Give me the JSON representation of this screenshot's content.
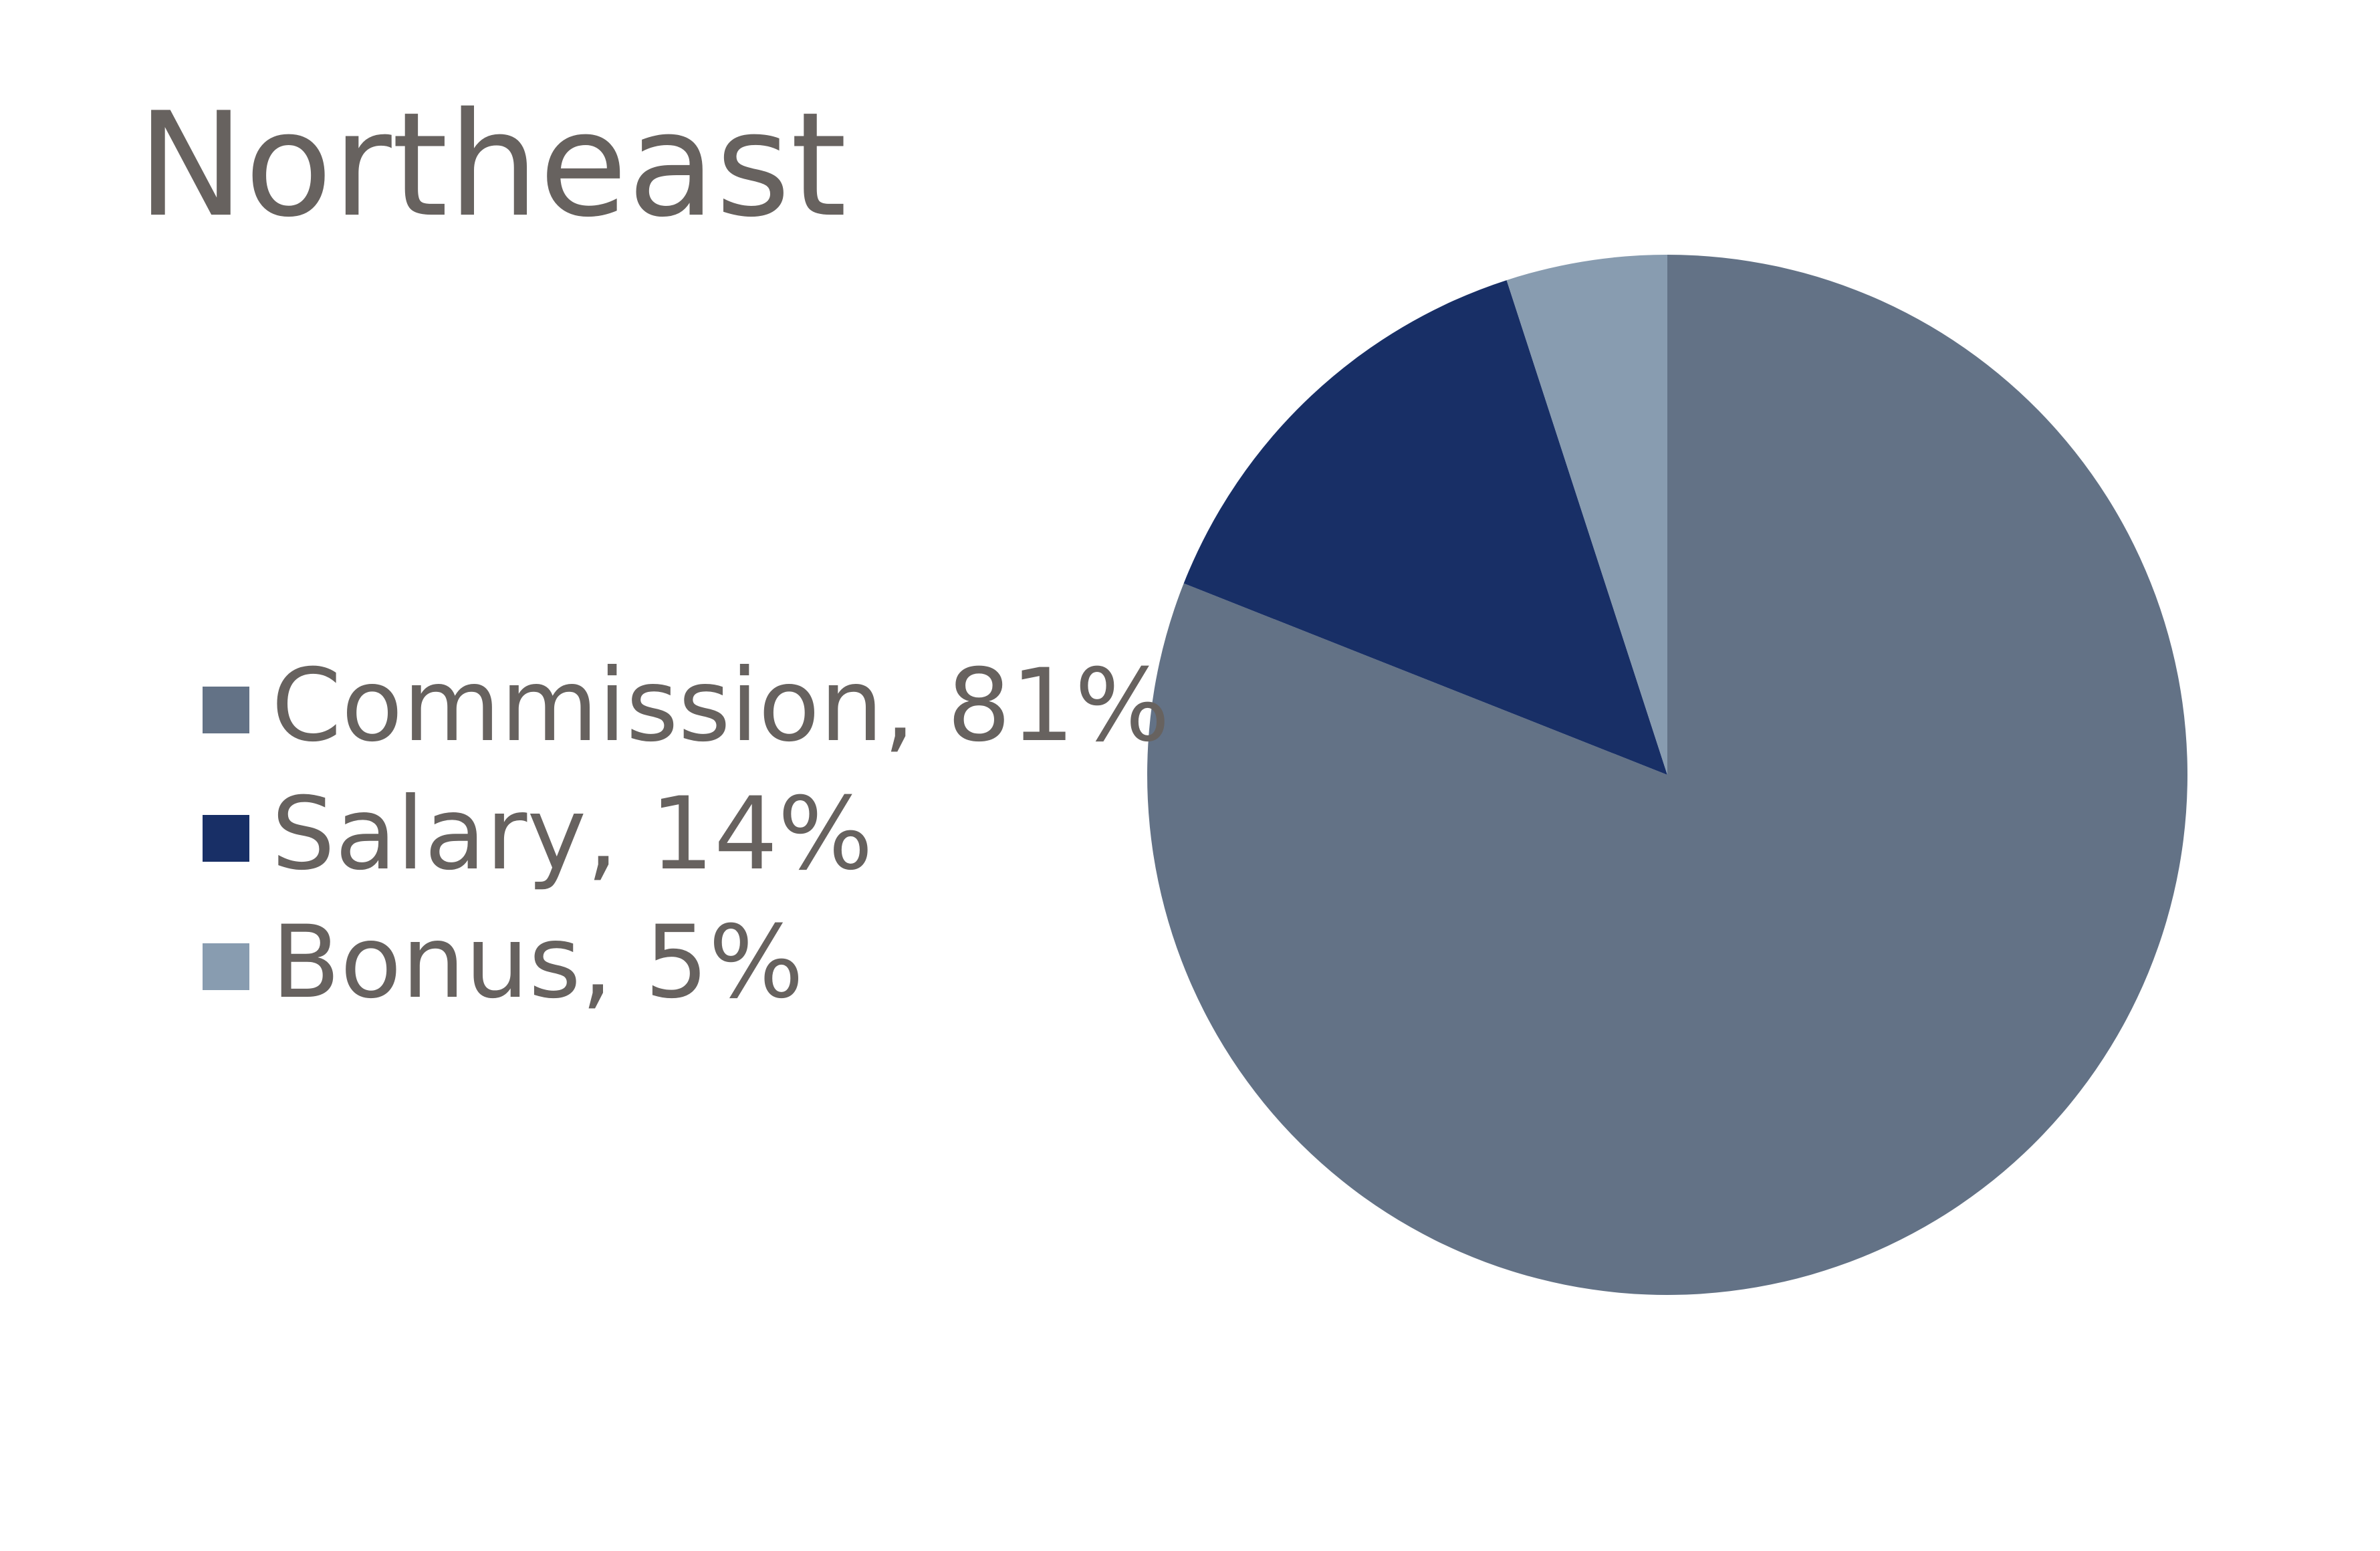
{
  "chart_data": {
    "type": "pie",
    "title": "Northeast",
    "categories": [
      "Commission, 81%",
      "Salary, 14%",
      "Bonus, 5%"
    ],
    "values": [
      81,
      14,
      5
    ],
    "colors": [
      "#637286",
      "#182f66",
      "#889cb0"
    ],
    "legend": "left"
  }
}
